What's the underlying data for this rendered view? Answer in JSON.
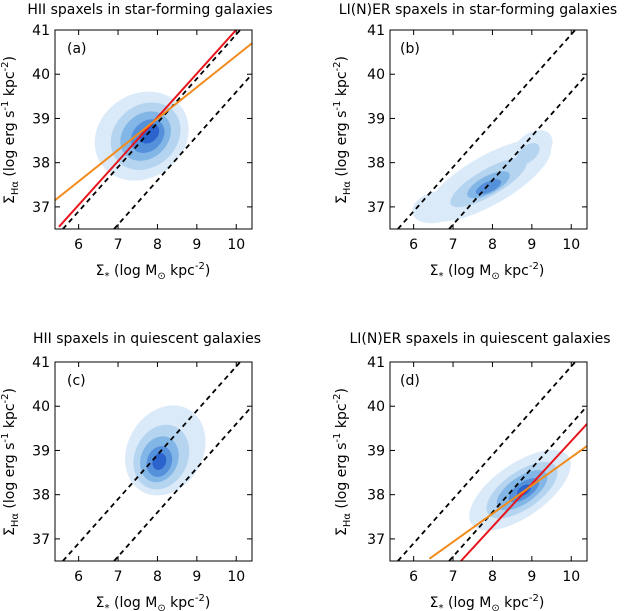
{
  "colors": {
    "red_fit": "#e8161c",
    "orange_fit": "#f28b1c",
    "contour_levels": [
      "#dbeaf9",
      "#b5d4f0",
      "#82b6e6",
      "#5590db",
      "#2b64cc"
    ]
  },
  "shared_axes": {
    "xlabel": {
      "prefix": "Σ",
      "sub": "*",
      "mid": " (log M",
      "sun": "⊙",
      "post": " kpc",
      "sup": "-2",
      "end": ")"
    },
    "ylabel": {
      "prefix": "Σ",
      "sub": "Hα",
      "mid": " (log erg s",
      "sup1": "-1",
      "mid2": " kpc",
      "sup2": "-2",
      "end": ")"
    },
    "xlim": [
      5.4,
      10.4
    ],
    "ylim": [
      36.5,
      41
    ],
    "xticks": [
      6,
      7,
      8,
      9,
      10
    ],
    "yticks": [
      37,
      38,
      39,
      40,
      41
    ],
    "xtick_labels": [
      "6",
      "7",
      "8",
      "9",
      "10"
    ],
    "ytick_labels": [
      "37",
      "38",
      "39",
      "40",
      "41"
    ]
  },
  "chart_data": [
    {
      "type": "heatmap",
      "panel_label": "(a)",
      "title": "HII spaxels in star-forming galaxies",
      "density_blobs": [
        {
          "cx": 7.6,
          "cy": 38.6,
          "rx": 1.25,
          "ry": 0.95,
          "angle": 35,
          "level": 0
        },
        {
          "cx": 7.7,
          "cy": 38.6,
          "rx": 0.95,
          "ry": 0.7,
          "angle": 40,
          "level": 1
        },
        {
          "cx": 7.7,
          "cy": 38.6,
          "rx": 0.7,
          "ry": 0.5,
          "angle": 42,
          "level": 2
        },
        {
          "cx": 7.75,
          "cy": 38.6,
          "rx": 0.48,
          "ry": 0.33,
          "angle": 45,
          "level": 3
        },
        {
          "cx": 7.8,
          "cy": 38.65,
          "rx": 0.28,
          "ry": 0.18,
          "angle": 45,
          "level": 4
        }
      ],
      "dashed_lines": [
        {
          "x": [
            5.6,
            10.4
          ],
          "y": [
            36.5,
            41.3
          ]
        },
        {
          "x": [
            6.9,
            10.4
          ],
          "y": [
            36.5,
            40.0
          ]
        }
      ],
      "fit_lines": [
        {
          "name": "red",
          "color": "red_fit",
          "x": [
            5.5,
            10.4
          ],
          "y": [
            36.55,
            41.4
          ]
        },
        {
          "name": "orange",
          "color": "orange_fit",
          "x": [
            5.4,
            10.4
          ],
          "y": [
            37.15,
            40.7
          ]
        }
      ]
    },
    {
      "type": "heatmap",
      "panel_label": "(b)",
      "title": "LI(N)ER spaxels in star-forming galaxies",
      "density_blobs": [
        {
          "cx": 7.9,
          "cy": 37.6,
          "rx": 1.8,
          "ry": 0.55,
          "angle": 30,
          "level": 0
        },
        {
          "cx": 6.6,
          "cy": 37.0,
          "rx": 0.65,
          "ry": 0.35,
          "angle": 15,
          "level": 0
        },
        {
          "cx": 9.0,
          "cy": 38.3,
          "rx": 0.6,
          "ry": 0.35,
          "angle": 40,
          "level": 0
        },
        {
          "cx": 7.9,
          "cy": 37.55,
          "rx": 1.1,
          "ry": 0.3,
          "angle": 30,
          "level": 1
        },
        {
          "cx": 8.9,
          "cy": 38.2,
          "rx": 0.35,
          "ry": 0.18,
          "angle": 40,
          "level": 1
        },
        {
          "cx": 7.9,
          "cy": 37.5,
          "rx": 0.6,
          "ry": 0.2,
          "angle": 28,
          "level": 2
        },
        {
          "cx": 7.9,
          "cy": 37.45,
          "rx": 0.35,
          "ry": 0.12,
          "angle": 25,
          "level": 3
        }
      ],
      "dashed_lines": [
        {
          "x": [
            5.6,
            10.4
          ],
          "y": [
            36.5,
            41.3
          ]
        },
        {
          "x": [
            6.9,
            10.4
          ],
          "y": [
            36.5,
            40.0
          ]
        }
      ],
      "fit_lines": []
    },
    {
      "type": "heatmap",
      "panel_label": "(c)",
      "title": "HII spaxels in quiescent galaxies",
      "density_blobs": [
        {
          "cx": 8.2,
          "cy": 39.0,
          "rx": 1.2,
          "ry": 0.85,
          "angle": 60,
          "level": 0
        },
        {
          "cx": 8.1,
          "cy": 38.85,
          "rx": 0.85,
          "ry": 0.6,
          "angle": 65,
          "level": 1
        },
        {
          "cx": 8.05,
          "cy": 38.8,
          "rx": 0.6,
          "ry": 0.42,
          "angle": 68,
          "level": 2
        },
        {
          "cx": 8.05,
          "cy": 38.75,
          "rx": 0.4,
          "ry": 0.28,
          "angle": 70,
          "level": 3
        },
        {
          "cx": 8.05,
          "cy": 38.75,
          "rx": 0.22,
          "ry": 0.15,
          "angle": 70,
          "level": 4
        }
      ],
      "dashed_lines": [
        {
          "x": [
            5.6,
            10.4
          ],
          "y": [
            36.5,
            41.3
          ]
        },
        {
          "x": [
            6.9,
            10.4
          ],
          "y": [
            36.5,
            40.0
          ]
        }
      ],
      "fit_lines": []
    },
    {
      "type": "heatmap",
      "panel_label": "(d)",
      "title": "LI(N)ER spaxels in quiescent galaxies",
      "density_blobs": [
        {
          "cx": 8.7,
          "cy": 38.1,
          "rx": 1.5,
          "ry": 0.6,
          "angle": 35,
          "level": 0
        },
        {
          "cx": 8.75,
          "cy": 38.1,
          "rx": 1.05,
          "ry": 0.42,
          "angle": 35,
          "level": 1
        },
        {
          "cx": 8.75,
          "cy": 38.1,
          "rx": 0.75,
          "ry": 0.3,
          "angle": 35,
          "level": 2
        },
        {
          "cx": 8.8,
          "cy": 38.1,
          "rx": 0.45,
          "ry": 0.18,
          "angle": 35,
          "level": 3
        },
        {
          "cx": 8.8,
          "cy": 38.1,
          "rx": 0.2,
          "ry": 0.1,
          "angle": 35,
          "level": 4
        }
      ],
      "dashed_lines": [
        {
          "x": [
            5.6,
            10.4
          ],
          "y": [
            36.5,
            41.3
          ]
        },
        {
          "x": [
            6.9,
            10.4
          ],
          "y": [
            36.5,
            40.0
          ]
        }
      ],
      "fit_lines": [
        {
          "name": "red",
          "color": "red_fit",
          "x": [
            7.2,
            10.4
          ],
          "y": [
            36.5,
            39.6
          ]
        },
        {
          "name": "orange",
          "color": "orange_fit",
          "x": [
            6.4,
            10.4
          ],
          "y": [
            36.55,
            39.1
          ]
        }
      ]
    }
  ]
}
